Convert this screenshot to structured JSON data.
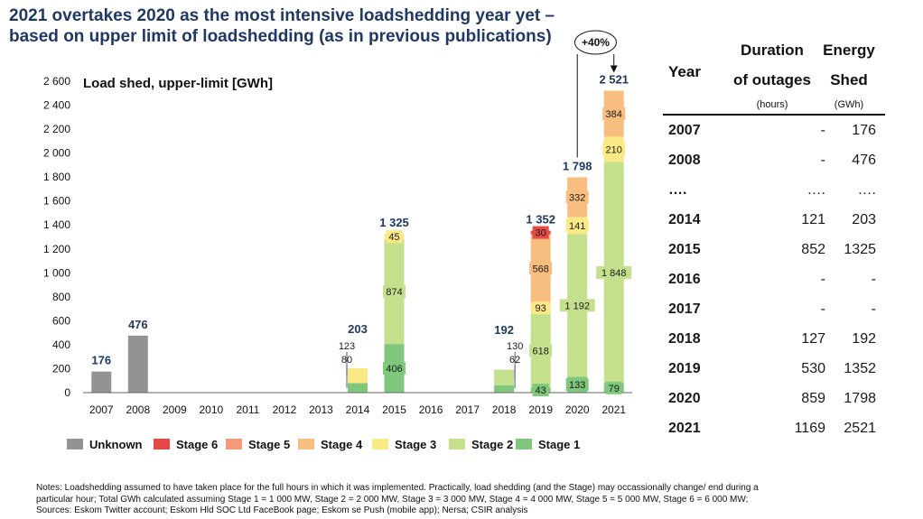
{
  "title_lines": [
    "2021 overtakes 2020 as the most intensive loadshedding year yet –",
    "based on upper limit of loadshedding (as in previous publications)"
  ],
  "chart_data": {
    "type": "bar",
    "stacked": true,
    "title": "Load shed, upper-limit [GWh]",
    "ylim": [
      0,
      2600
    ],
    "yticks": [
      "0",
      "200",
      "400",
      "600",
      "800",
      "1 000",
      "1 200",
      "1 400",
      "1 600",
      "1 800",
      "2 000",
      "2 200",
      "2 400",
      "2 600"
    ],
    "categories": [
      "2007",
      "2008",
      "2009",
      "2010",
      "2011",
      "2012",
      "2013",
      "2014",
      "2015",
      "2016",
      "2017",
      "2018",
      "2019",
      "2020",
      "2021"
    ],
    "series": [
      {
        "name": "Unknown",
        "color": "#939393",
        "values": [
          176,
          476,
          0,
          0,
          0,
          0,
          0,
          0,
          0,
          0,
          0,
          0,
          0,
          0,
          0
        ]
      },
      {
        "name": "Stage 1",
        "color": "#7fc77b",
        "values": [
          0,
          0,
          0,
          0,
          0,
          0,
          0,
          80,
          406,
          0,
          0,
          62,
          43,
          133,
          79
        ]
      },
      {
        "name": "Stage 2",
        "color": "#c5e08c",
        "values": [
          0,
          0,
          0,
          0,
          0,
          0,
          0,
          0,
          874,
          0,
          0,
          130,
          618,
          1192,
          1848
        ]
      },
      {
        "name": "Stage 3",
        "color": "#fbe985",
        "values": [
          0,
          0,
          0,
          0,
          0,
          0,
          0,
          123,
          45,
          0,
          0,
          0,
          93,
          141,
          210
        ]
      },
      {
        "name": "Stage 4",
        "color": "#f8be80",
        "values": [
          0,
          0,
          0,
          0,
          0,
          0,
          0,
          0,
          0,
          0,
          0,
          0,
          568,
          332,
          384
        ]
      },
      {
        "name": "Stage 5",
        "color": "#f39a78",
        "values": [
          0,
          0,
          0,
          0,
          0,
          0,
          0,
          0,
          0,
          0,
          0,
          0,
          0,
          0,
          0
        ]
      },
      {
        "name": "Stage 6",
        "color": "#e74948",
        "values": [
          0,
          0,
          0,
          0,
          0,
          0,
          0,
          0,
          0,
          0,
          0,
          0,
          30,
          0,
          0
        ]
      }
    ],
    "segment_labels": [
      {
        "category": "2015",
        "series": "Stage 1",
        "text": "406"
      },
      {
        "category": "2015",
        "series": "Stage 2",
        "text": "874"
      },
      {
        "category": "2015",
        "series": "Stage 3",
        "text": "45"
      },
      {
        "category": "2019",
        "series": "Stage 1",
        "text": "43"
      },
      {
        "category": "2019",
        "series": "Stage 2",
        "text": "618"
      },
      {
        "category": "2019",
        "series": "Stage 3",
        "text": "93"
      },
      {
        "category": "2019",
        "series": "Stage 4",
        "text": "568"
      },
      {
        "category": "2019",
        "series": "Stage 6",
        "text": "30"
      },
      {
        "category": "2020",
        "series": "Stage 1",
        "text": "133"
      },
      {
        "category": "2020",
        "series": "Stage 2",
        "text": "1 192"
      },
      {
        "category": "2020",
        "series": "Stage 3",
        "text": "141"
      },
      {
        "category": "2020",
        "series": "Stage 4",
        "text": "332"
      },
      {
        "category": "2021",
        "series": "Stage 1",
        "text": "79"
      },
      {
        "category": "2021",
        "series": "Stage 2",
        "text": "1 848"
      },
      {
        "category": "2021",
        "series": "Stage 3",
        "text": "210"
      },
      {
        "category": "2021",
        "series": "Stage 4",
        "text": "384"
      }
    ],
    "callout_labels": [
      {
        "category": "2014",
        "series": "Stage 3",
        "text": "123"
      },
      {
        "category": "2014",
        "series": "Stage 1",
        "text": "80"
      },
      {
        "category": "2018",
        "series": "Stage 2",
        "text": "130"
      },
      {
        "category": "2018",
        "series": "Stage 1",
        "text": "62"
      }
    ],
    "totals": [
      {
        "category": "2007",
        "text": "176"
      },
      {
        "category": "2008",
        "text": "476"
      },
      {
        "category": "2014",
        "text": "203"
      },
      {
        "category": "2015",
        "text": "1 325"
      },
      {
        "category": "2018",
        "text": "192"
      },
      {
        "category": "2019",
        "text": "1 352"
      },
      {
        "category": "2020",
        "text": "1 798"
      },
      {
        "category": "2021",
        "text": "2 521"
      }
    ],
    "growth_annotation": {
      "from": "2020",
      "to": "2021",
      "text": "+40%"
    },
    "legend": {
      "position": "bottom",
      "entries": [
        {
          "name": "Unknown",
          "color": "#939393"
        },
        {
          "name": "Stage 6",
          "color": "#e74948"
        },
        {
          "name": "Stage 5",
          "color": "#f39a78"
        },
        {
          "name": "Stage 4",
          "color": "#f8be80"
        },
        {
          "name": "Stage 3",
          "color": "#fbe985"
        },
        {
          "name": "Stage 2",
          "color": "#c5e08c"
        },
        {
          "name": "Stage 1",
          "color": "#7fc77b"
        }
      ]
    }
  },
  "table": {
    "col_year": "Year",
    "col_duration": [
      "Duration",
      "of outages"
    ],
    "col_energy": [
      "Energy",
      "Shed"
    ],
    "unit_duration": "(hours)",
    "unit_energy": "(GWh)",
    "rows": [
      {
        "year": "2007",
        "duration": "-",
        "energy": "176"
      },
      {
        "year": "2008",
        "duration": "-",
        "energy": "476"
      },
      {
        "year": "….",
        "duration": "….",
        "energy": "…."
      },
      {
        "year": "2014",
        "duration": "121",
        "energy": "203"
      },
      {
        "year": "2015",
        "duration": "852",
        "energy": "1325"
      },
      {
        "year": "2016",
        "duration": "-",
        "energy": "-"
      },
      {
        "year": "2017",
        "duration": "-",
        "energy": "-"
      },
      {
        "year": "2018",
        "duration": "127",
        "energy": "192"
      },
      {
        "year": "2019",
        "duration": "530",
        "energy": "1352"
      },
      {
        "year": "2020",
        "duration": "859",
        "energy": "1798"
      },
      {
        "year": "2021",
        "duration": "1169",
        "energy": "2521"
      }
    ]
  },
  "notes": [
    "Notes: Loadshedding assumed to have taken place for the full hours in which it was implemented.  Practically, load shedding (and the Stage) may occassionally change/ end during a",
    "particular hour; Total GWh calculated assuming Stage 1 = 1 000 MW, Stage 2 = 2 000 MW, Stage 3 = 3 000 MW, Stage 4 = 4 000 MW, Stage 5 = 5 000 MW, Stage 6 = 6 000 MW;",
    "Sources: Eskom Twitter account; Eskom Hld SOC Ltd FaceBook page; Eskom se Push (mobile app); Nersa; CSIR analysis"
  ]
}
